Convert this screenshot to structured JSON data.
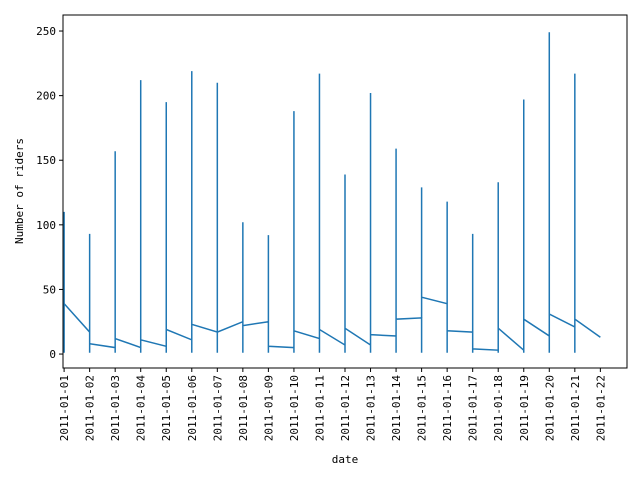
{
  "chart_data": {
    "type": "line",
    "x_label": "date",
    "y_label": "Number of riders",
    "x": [
      "2011-01-01",
      "2011-01-01",
      "2011-01-01",
      "2011-01-01",
      "2011-01-02",
      "2011-01-02",
      "2011-01-02",
      "2011-01-02",
      "2011-01-03",
      "2011-01-03",
      "2011-01-03",
      "2011-01-03",
      "2011-01-04",
      "2011-01-04",
      "2011-01-04",
      "2011-01-04",
      "2011-01-05",
      "2011-01-05",
      "2011-01-05",
      "2011-01-05",
      "2011-01-06",
      "2011-01-06",
      "2011-01-06",
      "2011-01-06",
      "2011-01-07",
      "2011-01-07",
      "2011-01-07",
      "2011-01-07",
      "2011-01-08",
      "2011-01-08",
      "2011-01-08",
      "2011-01-08",
      "2011-01-09",
      "2011-01-09",
      "2011-01-09",
      "2011-01-09",
      "2011-01-10",
      "2011-01-10",
      "2011-01-10",
      "2011-01-10",
      "2011-01-11",
      "2011-01-11",
      "2011-01-11",
      "2011-01-11",
      "2011-01-12",
      "2011-01-12",
      "2011-01-12",
      "2011-01-12",
      "2011-01-13",
      "2011-01-13",
      "2011-01-13",
      "2011-01-13",
      "2011-01-14",
      "2011-01-14",
      "2011-01-14",
      "2011-01-14",
      "2011-01-15",
      "2011-01-15",
      "2011-01-15",
      "2011-01-15",
      "2011-01-16",
      "2011-01-16",
      "2011-01-16",
      "2011-01-16",
      "2011-01-17",
      "2011-01-17",
      "2011-01-17",
      "2011-01-17",
      "2011-01-18",
      "2011-01-18",
      "2011-01-18",
      "2011-01-18",
      "2011-01-19",
      "2011-01-19",
      "2011-01-19",
      "2011-01-19",
      "2011-01-20",
      "2011-01-20",
      "2011-01-20",
      "2011-01-20",
      "2011-01-21",
      "2011-01-21",
      "2011-01-21",
      "2011-01-21",
      "2011-01-22"
    ],
    "series": [
      {
        "color": "#1f77b4",
        "values": [
          16,
          1,
          110,
          39,
          17,
          1,
          93,
          8,
          5,
          1,
          157,
          12,
          5,
          1,
          212,
          11,
          6,
          1,
          195,
          19,
          11,
          1,
          219,
          23,
          17,
          1,
          210,
          17,
          25,
          1,
          102,
          22,
          25,
          1,
          92,
          6,
          5,
          1,
          188,
          18,
          12,
          1,
          217,
          19,
          7,
          1,
          139,
          20,
          7,
          1,
          202,
          15,
          14,
          1,
          159,
          27,
          28,
          1,
          129,
          44,
          39,
          1,
          118,
          18,
          17,
          1,
          93,
          4,
          3,
          1,
          133,
          20,
          3,
          1,
          197,
          27,
          14,
          1,
          249,
          31,
          21,
          1,
          217,
          27,
          13
        ]
      }
    ],
    "xlim": [
      "2010-12-31T22:58",
      "2011-01-23T01:02"
    ],
    "xticks": [
      "2011-01-01",
      "2011-01-02",
      "2011-01-03",
      "2011-01-04",
      "2011-01-05",
      "2011-01-06",
      "2011-01-07",
      "2011-01-08",
      "2011-01-09",
      "2011-01-10",
      "2011-01-11",
      "2011-01-12",
      "2011-01-13",
      "2011-01-14",
      "2011-01-15",
      "2011-01-16",
      "2011-01-17",
      "2011-01-18",
      "2011-01-19",
      "2011-01-20",
      "2011-01-21",
      "2011-01-22"
    ],
    "ylim": [
      -10.8,
      262.4
    ],
    "yticks": [
      0,
      50,
      100,
      150,
      200,
      250
    ]
  }
}
